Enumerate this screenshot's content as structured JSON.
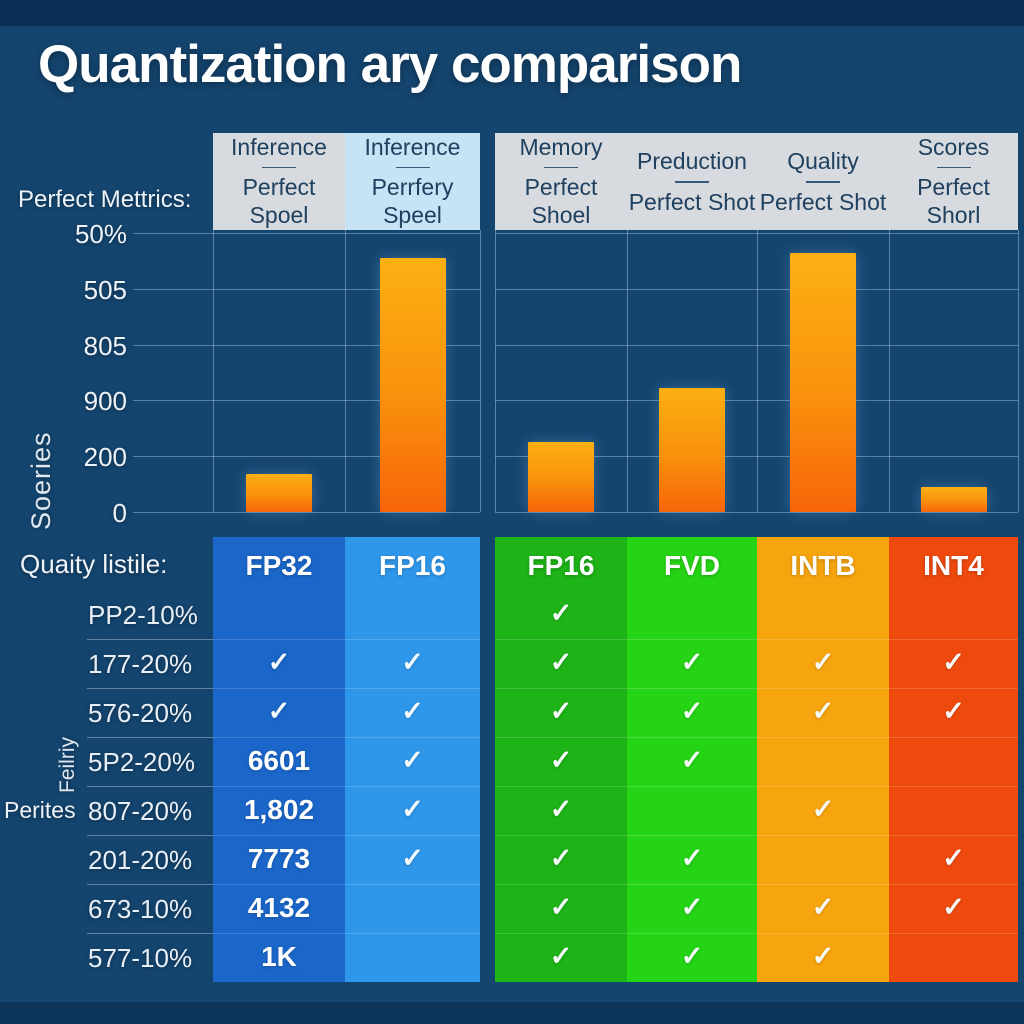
{
  "title": "Quantization ary comparison",
  "labels": {
    "metrics_label": "Perfect Mettrics:",
    "series_axis_label": "Soeries",
    "table_label": "Quaity listile:",
    "side_label_rotated": "Feilriy",
    "side_label": "Perites"
  },
  "columns": [
    {
      "line1": "Inference",
      "line2": "Perfect Spoel",
      "header_bg": "#d7dbdf"
    },
    {
      "line1": "Inference",
      "line2": "Perrfery Speel",
      "header_bg": "#c6e4f6"
    },
    {
      "line1": "Memory",
      "line2": "Perfect Shoel",
      "header_bg": "#d7dbdf"
    },
    {
      "line1": "Preduction",
      "line2": "Perfect Shot",
      "header_bg": "#d7dbdf"
    },
    {
      "line1": "Quality",
      "line2": "Perfect Shot",
      "header_bg": "#d7dbdf"
    },
    {
      "line1": "Scores",
      "line2": "Perfect Shorl",
      "header_bg": "#d7dbdf"
    }
  ],
  "chart_data": {
    "type": "bar",
    "title": "Quantization ary comparison",
    "categories": [
      "Inference — Perfect Spoel",
      "Inference — Perrfery Speel",
      "Memory — Perfect Shoel",
      "Preduction — Perfect Shot",
      "Quality — Perfect Shot",
      "Scores — Perfect Shorl"
    ],
    "values_pct_of_axis": [
      13.6,
      91.0,
      25.1,
      44.4,
      92.8,
      9.0
    ],
    "ytick_labels_top_to_bottom": [
      "50%",
      "505",
      "805",
      "900",
      "200",
      "0"
    ],
    "xlabel": "",
    "ylabel": "Soeries",
    "grid": true,
    "legend": false,
    "bar_color_top": "#fcb013",
    "bar_color_bottom": "#f7650a"
  },
  "table": {
    "check_glyph": "✓",
    "columns": [
      {
        "label": "FP32",
        "color": "#1b66c9"
      },
      {
        "label": "FP16",
        "color": "#2f97ea"
      },
      {
        "label": "FP16",
        "color": "#1eb317"
      },
      {
        "label": "FVD",
        "color": "#25d414"
      },
      {
        "label": "INTB",
        "color": "#f7a50e"
      },
      {
        "label": "INT4",
        "color": "#ee4a0e"
      }
    ],
    "rows": [
      {
        "label": "PP2-10%",
        "cells": [
          "",
          "",
          "check",
          "",
          "",
          ""
        ]
      },
      {
        "label": "177-20%",
        "cells": [
          "check",
          "check",
          "check",
          "check",
          "check",
          "check"
        ]
      },
      {
        "label": "576-20%",
        "cells": [
          "check",
          "check",
          "check",
          "check",
          "check",
          "check"
        ]
      },
      {
        "label": "5P2-20%",
        "cells": [
          "6601",
          "check",
          "check",
          "check",
          "",
          ""
        ]
      },
      {
        "label": "807-20%",
        "cells": [
          "1,802",
          "check",
          "check",
          "",
          "check",
          ""
        ]
      },
      {
        "label": "201-20%",
        "cells": [
          "7773",
          "check",
          "check",
          "check",
          "",
          "check"
        ]
      },
      {
        "label": "673-10%",
        "cells": [
          "4132",
          "",
          "check",
          "check",
          "check",
          "check"
        ]
      },
      {
        "label": "577-10%",
        "cells": [
          "1K",
          "",
          "check",
          "check",
          "check",
          ""
        ]
      }
    ]
  },
  "colors": {
    "background": "#14456f",
    "header_text": "#20405f",
    "accent_orange": "#f9910c"
  }
}
